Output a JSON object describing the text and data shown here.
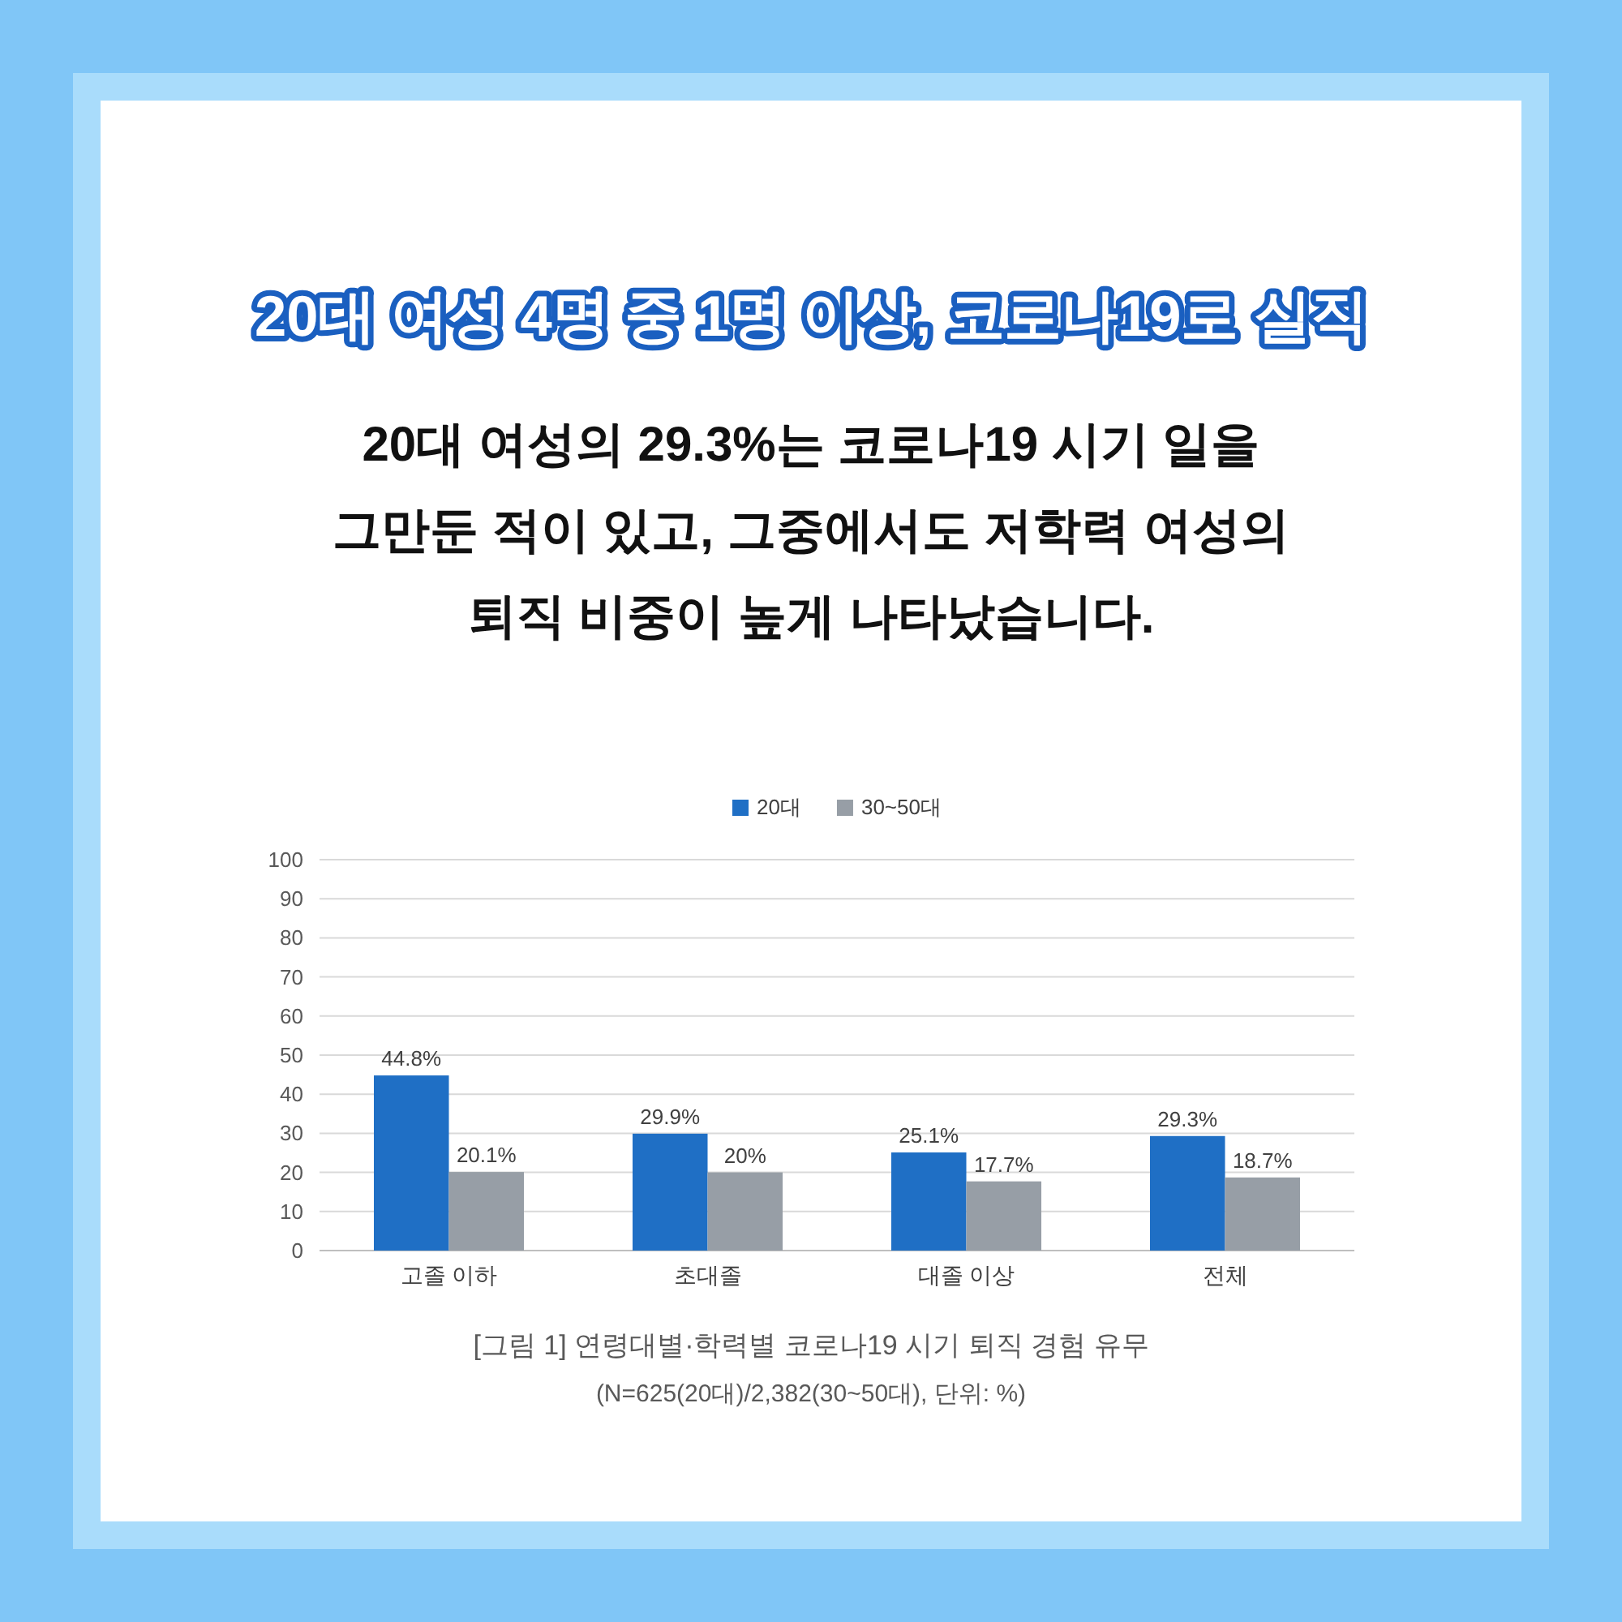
{
  "chart_data": {
    "type": "bar",
    "title": "20대 여성 4명 중 1명 이상, 코로나19로 실직",
    "subtitle": "20대 여성의 29.3%는 코로나19 시기 일을\n그만둔 적이 있고, 그중에서도 저학력 여성의\n퇴직 비중이 높게 나타났습니다.",
    "categories": [
      "고졸 이하",
      "초대졸",
      "대졸 이상",
      "전체"
    ],
    "series": [
      {
        "name": "20대",
        "color": "#1f6fc5",
        "values": [
          44.8,
          29.9,
          25.1,
          29.3
        ],
        "value_labels": [
          "44.8%",
          "29.9%",
          "25.1%",
          "29.3%"
        ]
      },
      {
        "name": "30~50대",
        "color": "#979ea6",
        "values": [
          20.1,
          20,
          17.7,
          18.7
        ],
        "value_labels": [
          "20.1%",
          "20%",
          "17.7%",
          "18.7%"
        ]
      }
    ],
    "ylim": [
      0,
      100
    ],
    "yticks": [
      0,
      10,
      20,
      30,
      40,
      50,
      60,
      70,
      80,
      90,
      100
    ],
    "grid": "y",
    "legend": "top",
    "annotations": [
      "[그림 1] 연령대별·학력별 코로나19 시기 퇴직 경험 유무",
      "(N=625(20대)/2,382(30~50대), 단위: %)"
    ]
  }
}
